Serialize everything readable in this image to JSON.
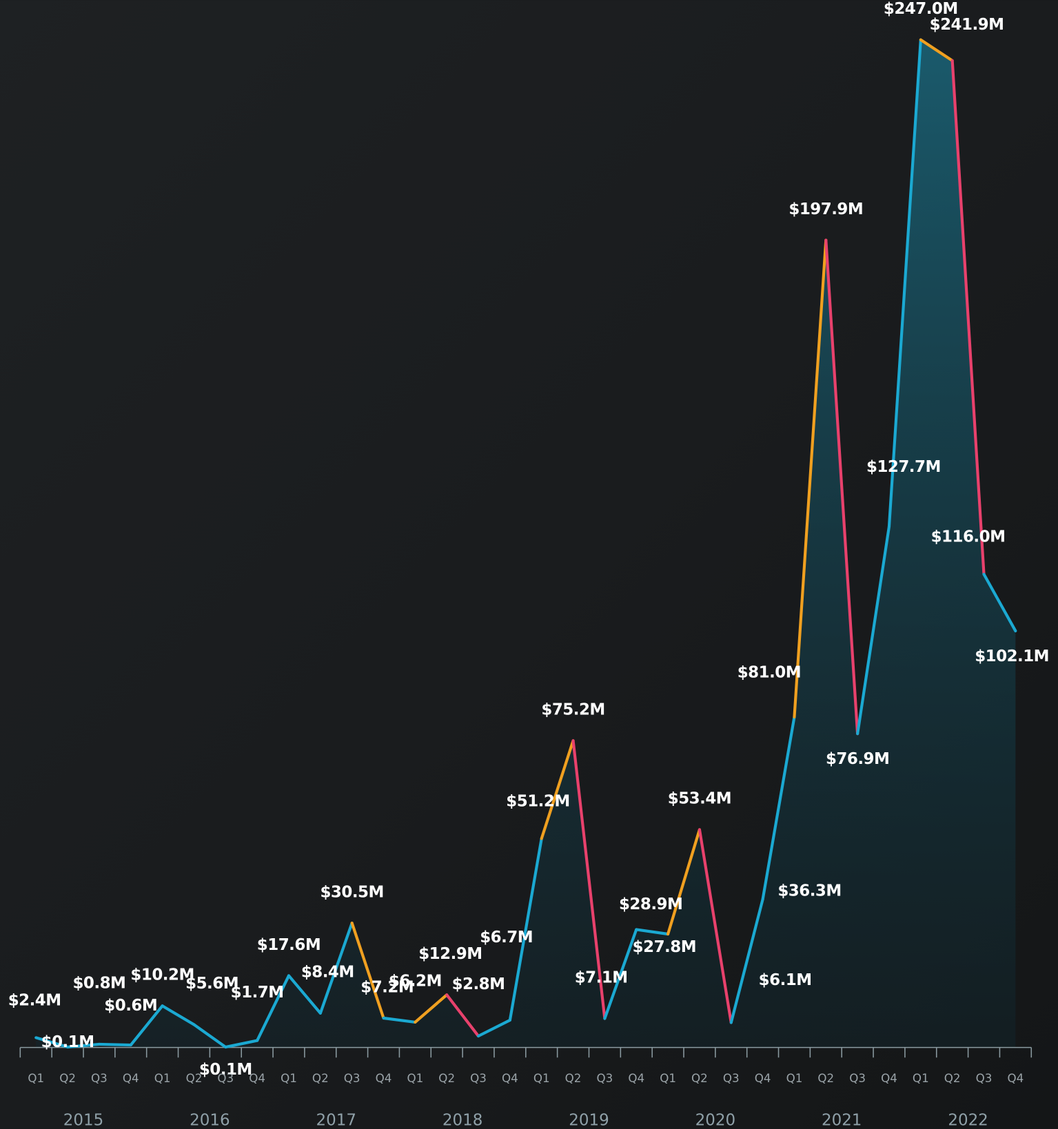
{
  "chart_data": {
    "type": "line",
    "categories": [
      "Q1",
      "Q2",
      "Q3",
      "Q4",
      "Q1",
      "Q2",
      "Q3",
      "Q4",
      "Q1",
      "Q2",
      "Q3",
      "Q4",
      "Q1",
      "Q2",
      "Q3",
      "Q4",
      "Q1",
      "Q2",
      "Q3",
      "Q4",
      "Q1",
      "Q2",
      "Q3",
      "Q4",
      "Q1",
      "Q2",
      "Q3",
      "Q4",
      "Q1",
      "Q2",
      "Q3",
      "Q4"
    ],
    "years": [
      "2015",
      "2016",
      "2017",
      "2018",
      "2019",
      "2020",
      "2021",
      "2022"
    ],
    "values": [
      2.4,
      0.1,
      0.8,
      0.6,
      10.2,
      5.6,
      0.1,
      1.7,
      17.6,
      8.4,
      30.5,
      7.2,
      6.2,
      12.9,
      2.8,
      6.7,
      51.2,
      75.2,
      7.1,
      28.9,
      27.8,
      53.4,
      6.1,
      36.3,
      81.0,
      197.9,
      76.9,
      127.7,
      247.0,
      241.9,
      116.0,
      102.1
    ],
    "value_labels": [
      "$2.4M",
      "$0.1M",
      "$0.8M",
      "$0.6M",
      "$10.2M",
      "$5.6M",
      "$0.1M",
      "$1.7M",
      "$17.6M",
      "$8.4M",
      "$30.5M",
      "$7.2M",
      "$6.2M",
      "$12.9M",
      "$2.8M",
      "$6.7M",
      "$51.2M",
      "$75.2M",
      "$7.1M",
      "$28.9M",
      "$27.8M",
      "$53.4M",
      "$6.1M",
      "$36.3M",
      "$81.0M",
      "$197.9M",
      "$76.9M",
      "$127.7M",
      "$247.0M",
      "$241.9M",
      "$116.0M",
      "$102.1M"
    ],
    "segment_colors": [
      "#1ba9d2",
      "#1ba9d2",
      "#1ba9d2",
      "#1ba9d2",
      "#1ba9d2",
      "#1ba9d2",
      "#1ba9d2",
      "#1ba9d2",
      "#1ba9d2",
      "#1ba9d2",
      "#f0a020",
      "#1ba9d2",
      "#f0a020",
      "#e8416c",
      "#1ba9d2",
      "#1ba9d2",
      "#f0a020",
      "#e8416c",
      "#1ba9d2",
      "#1ba9d2",
      "#f0a020",
      "#e8416c",
      "#1ba9d2",
      "#1ba9d2",
      "#f0a020",
      "#e8416c",
      "#1ba9d2",
      "#1ba9d2",
      "#f0a020",
      "#e8416c",
      "#1ba9d2"
    ],
    "ylim": [
      0,
      250
    ]
  }
}
